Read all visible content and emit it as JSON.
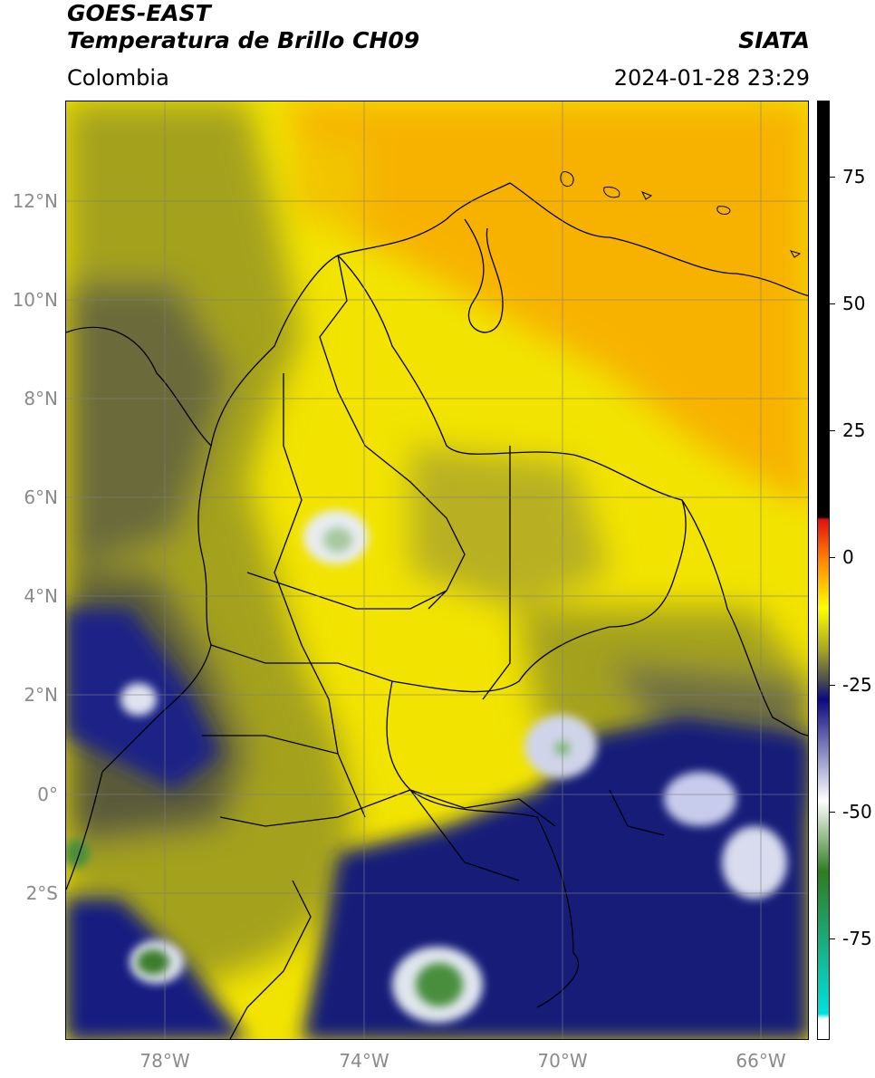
{
  "header": {
    "title_line1": "GOES-EAST",
    "title_line2": "Temperatura de Brillo CH09",
    "organization": "SIATA",
    "region": "Colombia",
    "timestamp": "2024-01-28 23:29"
  },
  "latitude_labels": [
    "12°N",
    "10°N",
    "8°N",
    "6°N",
    "4°N",
    "2°N",
    "0°",
    "2°S"
  ],
  "longitude_labels": [
    "78°W",
    "74°W",
    "70°W",
    "66°W"
  ],
  "colorbar": {
    "tick_labels": [
      "75",
      "50",
      "25",
      "0",
      "-25",
      "-50",
      "-75"
    ],
    "tick_values": [
      75,
      50,
      25,
      0,
      -25,
      -50,
      -75
    ],
    "min": -95,
    "max": 90,
    "colors": {
      "high": "#000000",
      "warm_red": "#e01010",
      "orange": "#ff8000",
      "yellow": "#ffff00",
      "olive": "#a8a820",
      "grey": "#505050",
      "navy": "#0a0a80",
      "white": "#ffffff",
      "green": "#2e7d1e",
      "cyan": "#00e0e0"
    }
  },
  "map_colors": {
    "ocean_orange": "#f7b200",
    "land_yellow": "#f2e400",
    "olive": "#a4a11c",
    "grey_cloud": "#5a5a3a",
    "navy_cloud": "#121a78",
    "cold_top": "#e8ecf0",
    "very_cold": "#3a7d2a"
  }
}
